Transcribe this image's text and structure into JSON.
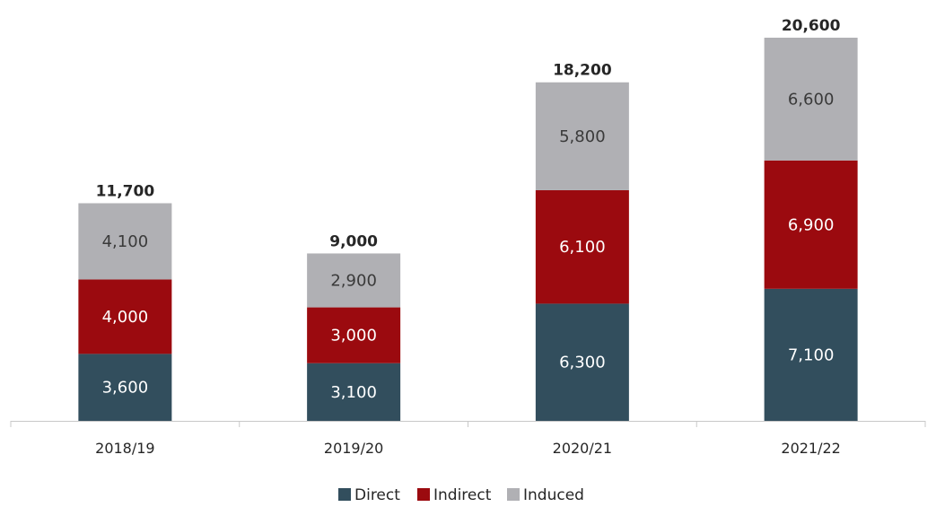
{
  "chart_data": {
    "type": "bar",
    "stacked": true,
    "title": "",
    "xlabel": "",
    "ylabel": "",
    "categories": [
      "2018/19",
      "2019/20",
      "2020/21",
      "2021/22"
    ],
    "series": [
      {
        "name": "Direct",
        "color": "#324e5d",
        "label_color": "#ffffff",
        "values": [
          3600,
          3100,
          6300,
          7100
        ],
        "labels": [
          "3,600",
          "3,100",
          "6,300",
          "7,100"
        ]
      },
      {
        "name": "Indirect",
        "color": "#9b0a0f",
        "label_color": "#ffffff",
        "values": [
          4000,
          3000,
          6100,
          6900
        ],
        "labels": [
          "4,000",
          "3,000",
          "6,100",
          "6,900"
        ]
      },
      {
        "name": "Induced",
        "color": "#b0b0b4",
        "label_color": "#3a3a3a",
        "values": [
          4100,
          2900,
          5800,
          6600
        ],
        "labels": [
          "4,100",
          "2,900",
          "5,800",
          "6,600"
        ]
      }
    ],
    "totals": [
      11700,
      9000,
      18200,
      20600
    ],
    "total_labels": [
      "11,700",
      "9,000",
      "18,200",
      "20,600"
    ],
    "ylim": [
      0,
      20600
    ],
    "y_axis_visible": false,
    "grid": false,
    "legend_position": "bottom-center"
  }
}
